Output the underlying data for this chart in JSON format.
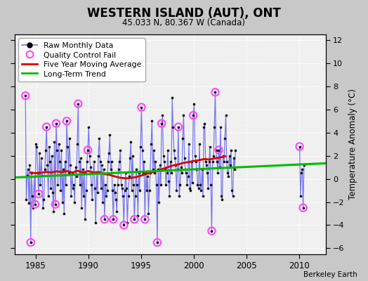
{
  "title": "WESTERN ISLAND (AUT), ONT",
  "subtitle": "45.033 N, 80.367 W (Canada)",
  "ylabel": "Temperature Anomaly (°C)",
  "credit": "Berkeley Earth",
  "xlim": [
    1983.0,
    2012.5
  ],
  "ylim": [
    -6.5,
    12.5
  ],
  "yticks": [
    -6,
    -4,
    -2,
    0,
    2,
    4,
    6,
    8,
    10,
    12
  ],
  "xticks": [
    1985,
    1990,
    1995,
    2000,
    2005,
    2010
  ],
  "bg_color": "#c8c8c8",
  "plot_bg_color": "#f0f0f0",
  "raw_line_color": "#7777ee",
  "raw_dot_color": "#111111",
  "qc_fail_color": "#ff44ff",
  "moving_avg_color": "#dd0000",
  "trend_color": "#00bb00",
  "raw_data": [
    [
      1984.042,
      7.2
    ],
    [
      1984.125,
      -1.8
    ],
    [
      1984.208,
      0.3
    ],
    [
      1984.292,
      0.8
    ],
    [
      1984.375,
      -2.1
    ],
    [
      1984.458,
      1.2
    ],
    [
      1984.542,
      -5.5
    ],
    [
      1984.625,
      0.5
    ],
    [
      1984.708,
      -1.5
    ],
    [
      1984.792,
      -2.5
    ],
    [
      1984.875,
      0.2
    ],
    [
      1984.958,
      -2.2
    ],
    [
      1985.042,
      3.0
    ],
    [
      1985.125,
      2.8
    ],
    [
      1985.208,
      0.5
    ],
    [
      1985.292,
      -1.3
    ],
    [
      1985.375,
      2.2
    ],
    [
      1985.458,
      -0.5
    ],
    [
      1985.542,
      1.8
    ],
    [
      1985.625,
      0.3
    ],
    [
      1985.708,
      -2.5
    ],
    [
      1985.792,
      -1.8
    ],
    [
      1985.875,
      0.8
    ],
    [
      1985.958,
      2.5
    ],
    [
      1986.042,
      4.5
    ],
    [
      1986.125,
      1.2
    ],
    [
      1986.208,
      -1.5
    ],
    [
      1986.292,
      2.8
    ],
    [
      1986.375,
      1.5
    ],
    [
      1986.458,
      -0.8
    ],
    [
      1986.542,
      2.0
    ],
    [
      1986.625,
      -1.2
    ],
    [
      1986.708,
      -2.8
    ],
    [
      1986.792,
      3.2
    ],
    [
      1986.875,
      -2.2
    ],
    [
      1986.958,
      4.8
    ],
    [
      1987.042,
      2.5
    ],
    [
      1987.125,
      -0.5
    ],
    [
      1987.208,
      3.0
    ],
    [
      1987.292,
      1.5
    ],
    [
      1987.375,
      -1.0
    ],
    [
      1987.458,
      2.5
    ],
    [
      1987.542,
      -2.0
    ],
    [
      1987.625,
      0.8
    ],
    [
      1987.708,
      -3.0
    ],
    [
      1987.792,
      1.5
    ],
    [
      1987.875,
      -0.5
    ],
    [
      1987.958,
      5.0
    ],
    [
      1988.042,
      2.8
    ],
    [
      1988.125,
      0.5
    ],
    [
      1988.208,
      3.5
    ],
    [
      1988.292,
      1.2
    ],
    [
      1988.375,
      -1.5
    ],
    [
      1988.458,
      0.5
    ],
    [
      1988.542,
      -0.8
    ],
    [
      1988.625,
      -0.5
    ],
    [
      1988.708,
      -2.0
    ],
    [
      1988.792,
      1.0
    ],
    [
      1988.875,
      0.2
    ],
    [
      1988.958,
      3.0
    ],
    [
      1989.042,
      6.5
    ],
    [
      1989.125,
      1.5
    ],
    [
      1989.208,
      -0.5
    ],
    [
      1989.292,
      1.8
    ],
    [
      1989.375,
      -2.5
    ],
    [
      1989.458,
      0.8
    ],
    [
      1989.542,
      -1.5
    ],
    [
      1989.625,
      0.5
    ],
    [
      1989.708,
      -3.5
    ],
    [
      1989.792,
      -1.0
    ],
    [
      1989.875,
      1.5
    ],
    [
      1989.958,
      2.5
    ],
    [
      1990.042,
      4.5
    ],
    [
      1990.125,
      2.0
    ],
    [
      1990.208,
      1.0
    ],
    [
      1990.292,
      -0.5
    ],
    [
      1990.375,
      -1.8
    ],
    [
      1990.458,
      0.5
    ],
    [
      1990.542,
      1.5
    ],
    [
      1990.625,
      -0.8
    ],
    [
      1990.708,
      -3.8
    ],
    [
      1990.792,
      0.5
    ],
    [
      1990.875,
      -1.2
    ],
    [
      1990.958,
      2.0
    ],
    [
      1991.042,
      3.5
    ],
    [
      1991.125,
      1.5
    ],
    [
      1991.208,
      -0.8
    ],
    [
      1991.292,
      1.2
    ],
    [
      1991.375,
      -2.0
    ],
    [
      1991.458,
      0.8
    ],
    [
      1991.542,
      -3.5
    ],
    [
      1991.625,
      -0.5
    ],
    [
      1991.708,
      -1.5
    ],
    [
      1991.792,
      -1.0
    ],
    [
      1991.875,
      1.5
    ],
    [
      1991.958,
      2.2
    ],
    [
      1992.042,
      3.8
    ],
    [
      1992.125,
      0.8
    ],
    [
      1992.208,
      1.5
    ],
    [
      1992.292,
      -1.0
    ],
    [
      1992.375,
      -3.5
    ],
    [
      1992.458,
      -0.5
    ],
    [
      1992.542,
      -1.2
    ],
    [
      1992.625,
      -1.8
    ],
    [
      1992.708,
      -2.8
    ],
    [
      1992.792,
      -0.5
    ],
    [
      1992.875,
      0.8
    ],
    [
      1992.958,
      1.5
    ],
    [
      1993.042,
      2.5
    ],
    [
      1993.125,
      -0.5
    ],
    [
      1993.208,
      -0.8
    ],
    [
      1993.292,
      -1.5
    ],
    [
      1993.375,
      -4.0
    ],
    [
      1993.458,
      -1.0
    ],
    [
      1993.542,
      0.5
    ],
    [
      1993.625,
      -0.8
    ],
    [
      1993.708,
      -3.8
    ],
    [
      1993.792,
      -1.5
    ],
    [
      1993.875,
      0.2
    ],
    [
      1993.958,
      1.8
    ],
    [
      1994.042,
      3.2
    ],
    [
      1994.125,
      -1.0
    ],
    [
      1994.208,
      2.0
    ],
    [
      1994.292,
      -0.5
    ],
    [
      1994.375,
      -3.5
    ],
    [
      1994.458,
      -1.5
    ],
    [
      1994.542,
      0.8
    ],
    [
      1994.625,
      -0.5
    ],
    [
      1994.708,
      -3.2
    ],
    [
      1994.792,
      0.5
    ],
    [
      1994.875,
      -1.0
    ],
    [
      1994.958,
      2.8
    ],
    [
      1995.042,
      6.2
    ],
    [
      1995.125,
      2.5
    ],
    [
      1995.208,
      0.5
    ],
    [
      1995.292,
      1.5
    ],
    [
      1995.375,
      -3.5
    ],
    [
      1995.458,
      0.5
    ],
    [
      1995.542,
      -1.0
    ],
    [
      1995.625,
      0.2
    ],
    [
      1995.708,
      -3.0
    ],
    [
      1995.792,
      -1.0
    ],
    [
      1995.875,
      0.5
    ],
    [
      1995.958,
      3.0
    ],
    [
      1996.042,
      5.0
    ],
    [
      1996.125,
      0.8
    ],
    [
      1996.208,
      2.5
    ],
    [
      1996.292,
      0.5
    ],
    [
      1996.375,
      1.5
    ],
    [
      1996.458,
      -0.5
    ],
    [
      1996.542,
      -5.5
    ],
    [
      1996.625,
      0.8
    ],
    [
      1996.708,
      -2.0
    ],
    [
      1996.792,
      1.2
    ],
    [
      1996.875,
      -0.5
    ],
    [
      1996.958,
      4.8
    ],
    [
      1997.042,
      5.5
    ],
    [
      1997.125,
      2.0
    ],
    [
      1997.208,
      1.5
    ],
    [
      1997.292,
      0.8
    ],
    [
      1997.375,
      -0.5
    ],
    [
      1997.458,
      0.5
    ],
    [
      1997.542,
      2.5
    ],
    [
      1997.625,
      -0.2
    ],
    [
      1997.708,
      -1.5
    ],
    [
      1997.792,
      1.5
    ],
    [
      1997.875,
      0.5
    ],
    [
      1997.958,
      7.0
    ],
    [
      1998.042,
      4.5
    ],
    [
      1998.125,
      2.5
    ],
    [
      1998.208,
      1.8
    ],
    [
      1998.292,
      1.2
    ],
    [
      1998.375,
      -1.0
    ],
    [
      1998.458,
      0.8
    ],
    [
      1998.542,
      4.5
    ],
    [
      1998.625,
      -1.5
    ],
    [
      1998.708,
      -0.5
    ],
    [
      1998.792,
      1.0
    ],
    [
      1998.875,
      0.5
    ],
    [
      1998.958,
      3.5
    ],
    [
      1999.042,
      5.5
    ],
    [
      1999.125,
      1.8
    ],
    [
      1999.208,
      0.8
    ],
    [
      1999.292,
      0.5
    ],
    [
      1999.375,
      -0.5
    ],
    [
      1999.458,
      0.2
    ],
    [
      1999.542,
      3.0
    ],
    [
      1999.625,
      -0.8
    ],
    [
      1999.708,
      -1.0
    ],
    [
      1999.792,
      1.5
    ],
    [
      1999.875,
      -0.3
    ],
    [
      1999.958,
      5.5
    ],
    [
      2000.042,
      6.5
    ],
    [
      2000.125,
      2.0
    ],
    [
      2000.208,
      1.5
    ],
    [
      2000.292,
      0.8
    ],
    [
      2000.375,
      -0.5
    ],
    [
      2000.458,
      -0.8
    ],
    [
      2000.542,
      3.0
    ],
    [
      2000.625,
      -0.5
    ],
    [
      2000.708,
      -1.0
    ],
    [
      2000.792,
      0.8
    ],
    [
      2000.875,
      -1.5
    ],
    [
      2000.958,
      4.5
    ],
    [
      2001.042,
      4.8
    ],
    [
      2001.125,
      1.5
    ],
    [
      2001.208,
      1.2
    ],
    [
      2001.292,
      0.5
    ],
    [
      2001.375,
      -0.8
    ],
    [
      2001.458,
      1.5
    ],
    [
      2001.542,
      2.8
    ],
    [
      2001.625,
      -0.5
    ],
    [
      2001.708,
      -4.5
    ],
    [
      2001.792,
      1.5
    ],
    [
      2001.875,
      2.0
    ],
    [
      2001.958,
      4.5
    ],
    [
      2002.042,
      7.5
    ],
    [
      2002.125,
      2.5
    ],
    [
      2002.208,
      1.5
    ],
    [
      2002.292,
      0.5
    ],
    [
      2002.375,
      2.5
    ],
    [
      2002.458,
      1.0
    ],
    [
      2002.542,
      4.5
    ],
    [
      2002.625,
      -1.5
    ],
    [
      2002.708,
      -1.8
    ],
    [
      2002.792,
      2.0
    ],
    [
      2002.875,
      1.5
    ],
    [
      2002.958,
      3.5
    ],
    [
      2003.042,
      5.5
    ],
    [
      2003.125,
      1.5
    ],
    [
      2003.208,
      0.5
    ],
    [
      2003.292,
      0.2
    ],
    [
      2003.375,
      2.0
    ],
    [
      2003.458,
      1.2
    ],
    [
      2003.542,
      2.5
    ],
    [
      2003.625,
      -1.0
    ],
    [
      2003.708,
      -1.5
    ],
    [
      2003.792,
      1.8
    ],
    [
      2003.875,
      0.8
    ],
    [
      2003.958,
      2.5
    ],
    [
      2010.042,
      2.8
    ],
    [
      2010.125,
      -1.5
    ],
    [
      2010.208,
      0.5
    ],
    [
      2010.292,
      0.8
    ],
    [
      2010.375,
      -2.5
    ],
    [
      2010.458,
      1.2
    ]
  ],
  "qc_fail_points": [
    [
      1984.042,
      7.2
    ],
    [
      1984.542,
      -5.5
    ],
    [
      1984.958,
      -2.2
    ],
    [
      1985.292,
      -1.3
    ],
    [
      1986.042,
      4.5
    ],
    [
      1986.875,
      -2.2
    ],
    [
      1986.958,
      4.8
    ],
    [
      1987.958,
      5.0
    ],
    [
      1989.042,
      6.5
    ],
    [
      1989.958,
      2.5
    ],
    [
      1991.542,
      -3.5
    ],
    [
      1992.375,
      -3.5
    ],
    [
      1993.375,
      -4.0
    ],
    [
      1994.375,
      -3.5
    ],
    [
      1995.042,
      6.2
    ],
    [
      1995.375,
      -3.5
    ],
    [
      1996.542,
      -5.5
    ],
    [
      1996.958,
      4.8
    ],
    [
      1998.542,
      4.5
    ],
    [
      1999.958,
      5.5
    ],
    [
      2001.708,
      -4.5
    ],
    [
      2002.042,
      7.5
    ],
    [
      2002.375,
      2.5
    ],
    [
      2010.042,
      2.8
    ],
    [
      2010.375,
      -2.5
    ]
  ],
  "moving_avg_x": [
    1984.5,
    1985.0,
    1985.5,
    1986.0,
    1986.5,
    1987.0,
    1987.5,
    1988.0,
    1988.5,
    1989.0,
    1989.5,
    1990.0,
    1990.5,
    1991.0,
    1991.5,
    1992.0,
    1992.5,
    1993.0,
    1993.5,
    1994.0,
    1994.5,
    1995.0,
    1995.5,
    1996.0,
    1996.5,
    1997.0,
    1997.5,
    1998.0,
    1998.5,
    1999.0,
    1999.5,
    2000.0,
    2000.5,
    2001.0,
    2001.5,
    2002.0,
    2002.5,
    2003.0
  ],
  "moving_avg_y": [
    0.55,
    0.5,
    0.52,
    0.6,
    0.55,
    0.65,
    0.58,
    0.68,
    0.55,
    0.7,
    0.55,
    0.68,
    0.55,
    0.6,
    0.42,
    0.35,
    0.22,
    0.1,
    0.05,
    0.08,
    0.15,
    0.28,
    0.42,
    0.55,
    0.68,
    0.85,
    1.0,
    1.15,
    1.25,
    1.38,
    1.45,
    1.55,
    1.62,
    1.72,
    1.68,
    1.78,
    1.85,
    1.95
  ],
  "trend_x": [
    1983.0,
    2012.5
  ],
  "trend_y": [
    0.12,
    1.35
  ]
}
